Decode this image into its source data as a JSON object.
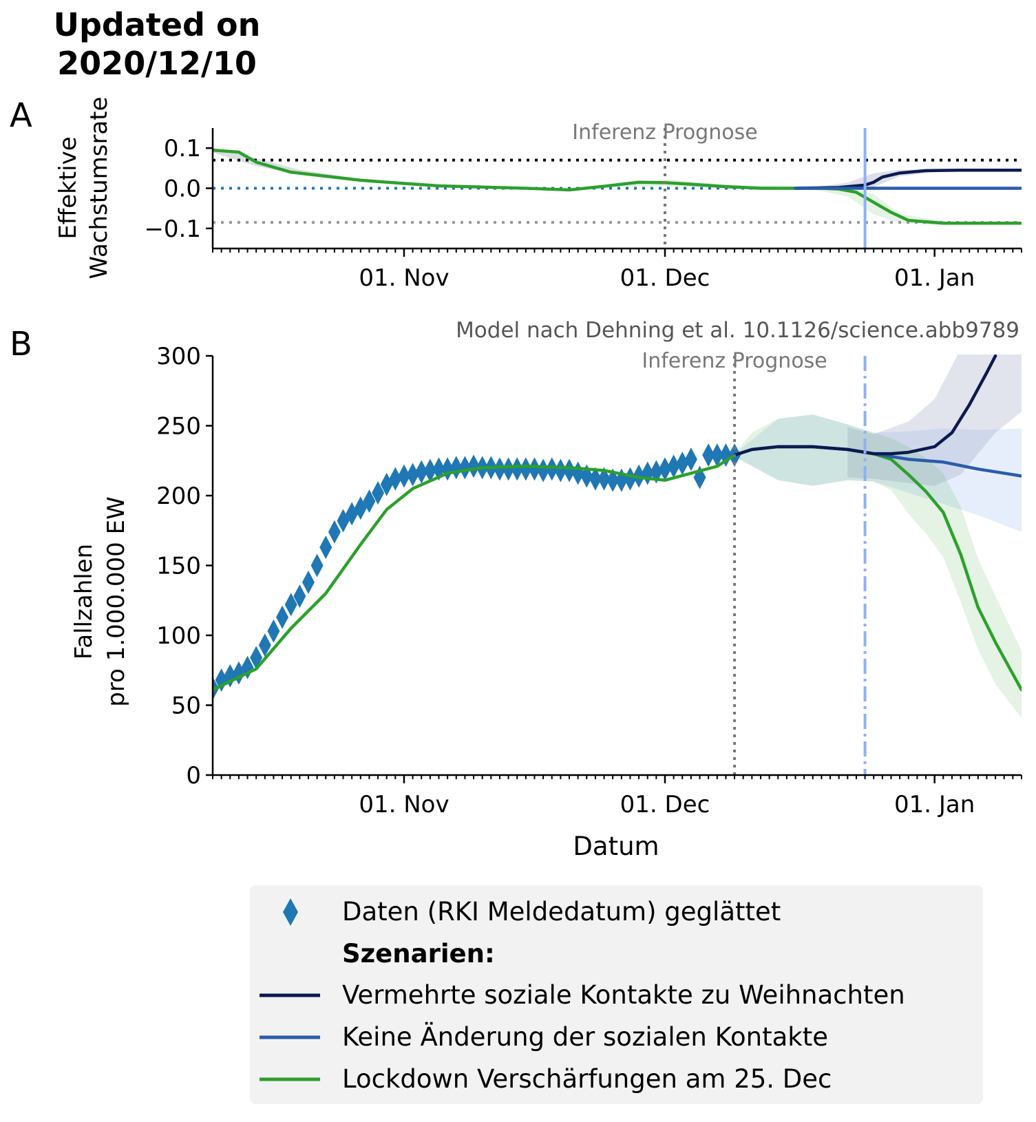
{
  "header": {
    "title_line1": "Updated on",
    "title_line2": "2020/12/10"
  },
  "colors": {
    "data": "#1f77b4",
    "increased_contacts": "#0b1a4e",
    "no_change": "#2a5caa",
    "lockdown": "#2ca02c",
    "christmas_line": "#8fb1f0",
    "inference_line": "#777777",
    "ref_dotted_black": "#000000",
    "ref_dotted_blue": "#1f77b4",
    "ref_dotted_grey": "#999999"
  },
  "chart_data": [
    {
      "panel_label": "A",
      "type": "line",
      "ylabel_line1": "Effektive",
      "ylabel_line2": "Wachstumsrate",
      "x_start": "2020-10-10",
      "x_end": "2021-01-11",
      "ylim": [
        -0.15,
        0.15
      ],
      "yticks": [
        -0.1,
        0.0,
        0.1
      ],
      "ytick_labels": [
        "−0.1",
        "0.0",
        "0.1"
      ],
      "xticks": [
        {
          "date": "2020-11-01",
          "label": "01. Nov"
        },
        {
          "date": "2020-12-01",
          "label": "01. Dec"
        },
        {
          "date": "2021-01-01",
          "label": "01. Jan"
        }
      ],
      "reference_lines": [
        {
          "y": 0.07,
          "style": "dotted-black"
        },
        {
          "y": 0.0,
          "style": "dotted-blue"
        },
        {
          "y": -0.085,
          "style": "dotted-grey"
        }
      ],
      "inference_split": {
        "date": "2020-12-01",
        "label": "Inferenz  Prognose"
      },
      "christmas_line": "2020-12-24",
      "series": [
        {
          "name": "Lockdown Verschärfungen am 25. Dec",
          "key": "lockdown",
          "x": [
            "2020-10-10",
            "2020-10-13",
            "2020-10-15",
            "2020-10-19",
            "2020-10-23",
            "2020-10-27",
            "2020-11-01",
            "2020-11-05",
            "2020-11-10",
            "2020-11-15",
            "2020-11-20",
            "2020-11-24",
            "2020-11-28",
            "2020-12-01",
            "2020-12-04",
            "2020-12-08",
            "2020-12-12",
            "2020-12-16",
            "2020-12-19",
            "2020-12-21",
            "2020-12-23",
            "2020-12-25",
            "2020-12-27",
            "2020-12-29",
            "2021-01-02",
            "2021-01-11"
          ],
          "y": [
            0.095,
            0.09,
            0.065,
            0.04,
            0.03,
            0.02,
            0.012,
            0.006,
            0.003,
            0.0,
            -0.004,
            0.005,
            0.015,
            0.014,
            0.01,
            0.004,
            0.0,
            0.0,
            0.0,
            -0.002,
            -0.01,
            -0.035,
            -0.06,
            -0.08,
            -0.087,
            -0.087
          ]
        },
        {
          "name": "Vermehrte soziale Kontakte zu Weihnachten",
          "key": "increased_contacts",
          "x": [
            "2020-12-16",
            "2020-12-21",
            "2020-12-24",
            "2020-12-25",
            "2020-12-26",
            "2020-12-28",
            "2020-12-31",
            "2021-01-04",
            "2021-01-11"
          ],
          "y": [
            0.0,
            0.002,
            0.008,
            0.015,
            0.028,
            0.038,
            0.044,
            0.045,
            0.045
          ]
        },
        {
          "name": "Keine Änderung der sozialen Kontakte",
          "key": "no_change",
          "x": [
            "2020-12-16",
            "2021-01-11"
          ],
          "y": [
            0.0,
            0.0
          ]
        }
      ]
    },
    {
      "panel_label": "B",
      "type": "line",
      "ylabel_line1": "Fallzahlen",
      "ylabel_line2": "pro 1.000.000 EW",
      "xlabel": "Datum",
      "annotation": "Model nach Dehning et al. 10.1126/science.abb9789",
      "x_start": "2020-10-10",
      "x_end": "2021-01-11",
      "ylim": [
        0,
        300
      ],
      "yticks": [
        0,
        50,
        100,
        150,
        200,
        250,
        300
      ],
      "xticks": [
        {
          "date": "2020-11-01",
          "label": "01. Nov"
        },
        {
          "date": "2020-12-01",
          "label": "01. Dec"
        },
        {
          "date": "2021-01-01",
          "label": "01. Jan"
        }
      ],
      "inference_split": {
        "date": "2020-12-09",
        "label": "Inferenz  Prognose"
      },
      "christmas_line": "2020-12-24",
      "data_points": {
        "name": "Daten (RKI Meldedatum) geglättet",
        "x": [
          "2020-10-10",
          "2020-10-11",
          "2020-10-12",
          "2020-10-13",
          "2020-10-14",
          "2020-10-15",
          "2020-10-16",
          "2020-10-17",
          "2020-10-18",
          "2020-10-19",
          "2020-10-20",
          "2020-10-21",
          "2020-10-22",
          "2020-10-23",
          "2020-10-24",
          "2020-10-25",
          "2020-10-26",
          "2020-10-27",
          "2020-10-28",
          "2020-10-29",
          "2020-10-30",
          "2020-10-31",
          "2020-11-01",
          "2020-11-02",
          "2020-11-03",
          "2020-11-04",
          "2020-11-05",
          "2020-11-06",
          "2020-11-07",
          "2020-11-08",
          "2020-11-09",
          "2020-11-10",
          "2020-11-11",
          "2020-11-12",
          "2020-11-13",
          "2020-11-14",
          "2020-11-15",
          "2020-11-16",
          "2020-11-17",
          "2020-11-18",
          "2020-11-19",
          "2020-11-20",
          "2020-11-21",
          "2020-11-22",
          "2020-11-23",
          "2020-11-24",
          "2020-11-25",
          "2020-11-26",
          "2020-11-27",
          "2020-11-28",
          "2020-11-29",
          "2020-11-30",
          "2020-12-01",
          "2020-12-02",
          "2020-12-03",
          "2020-12-04",
          "2020-12-05",
          "2020-12-06",
          "2020-12-07",
          "2020-12-08",
          "2020-12-09"
        ],
        "y": [
          62,
          68,
          71,
          73,
          77,
          84,
          93,
          103,
          113,
          122,
          128,
          138,
          150,
          163,
          174,
          182,
          187,
          191,
          196,
          202,
          208,
          212,
          214,
          215,
          217,
          218,
          219,
          219,
          220,
          220,
          221,
          220,
          220,
          219,
          219,
          219,
          219,
          219,
          218,
          219,
          218,
          218,
          216,
          214,
          212,
          212,
          211,
          211,
          212,
          214,
          216,
          217,
          219,
          221,
          223,
          226,
          213,
          229,
          229,
          229,
          229
        ]
      },
      "series": [
        {
          "name": "Lockdown Verschärfungen am 25. Dec",
          "key": "lockdown",
          "x": [
            "2020-10-10",
            "2020-10-13",
            "2020-10-15",
            "2020-10-19",
            "2020-10-23",
            "2020-10-27",
            "2020-10-30",
            "2020-11-02",
            "2020-11-06",
            "2020-11-10",
            "2020-11-15",
            "2020-11-20",
            "2020-11-24",
            "2020-11-28",
            "2020-12-01",
            "2020-12-04",
            "2020-12-07",
            "2020-12-09",
            "2020-12-11",
            "2020-12-14",
            "2020-12-18",
            "2020-12-22",
            "2020-12-25",
            "2020-12-27",
            "2020-12-29",
            "2020-12-31",
            "2021-01-02",
            "2021-01-04",
            "2021-01-06",
            "2021-01-08",
            "2021-01-11"
          ],
          "y": [
            61,
            70,
            76,
            105,
            130,
            165,
            190,
            205,
            216,
            220,
            221,
            220,
            218,
            213,
            211,
            216,
            221,
            229,
            233,
            235,
            235,
            233,
            230,
            226,
            215,
            203,
            188,
            158,
            120,
            95,
            61
          ]
        },
        {
          "name": "Keine Änderung der sozialen Kontakte",
          "key": "no_change",
          "x": [
            "2020-12-09",
            "2020-12-11",
            "2020-12-14",
            "2020-12-18",
            "2020-12-22",
            "2020-12-25",
            "2020-12-29",
            "2021-01-02",
            "2021-01-06",
            "2021-01-11"
          ],
          "y": [
            229,
            233,
            235,
            235,
            233,
            230,
            226,
            224,
            219,
            214
          ]
        },
        {
          "name": "Vermehrte soziale Kontakte zu Weihnachten",
          "key": "increased_contacts",
          "x": [
            "2020-12-09",
            "2020-12-11",
            "2020-12-14",
            "2020-12-18",
            "2020-12-22",
            "2020-12-25",
            "2020-12-27",
            "2020-12-29",
            "2021-01-01",
            "2021-01-03",
            "2021-01-05",
            "2021-01-07",
            "2021-01-08"
          ],
          "y": [
            229,
            233,
            235,
            235,
            233,
            230,
            230,
            231,
            235,
            245,
            265,
            288,
            300
          ]
        }
      ]
    }
  ],
  "legend": {
    "data_label": "Daten (RKI Meldedatum) geglättet",
    "heading": "Szenarien:",
    "items": [
      {
        "key": "increased_contacts",
        "label": "Vermehrte soziale Kontakte zu Weihnachten"
      },
      {
        "key": "no_change",
        "label": "Keine Änderung der sozialen Kontakte"
      },
      {
        "key": "lockdown",
        "label": "Lockdown Verschärfungen am 25. Dec"
      }
    ]
  }
}
